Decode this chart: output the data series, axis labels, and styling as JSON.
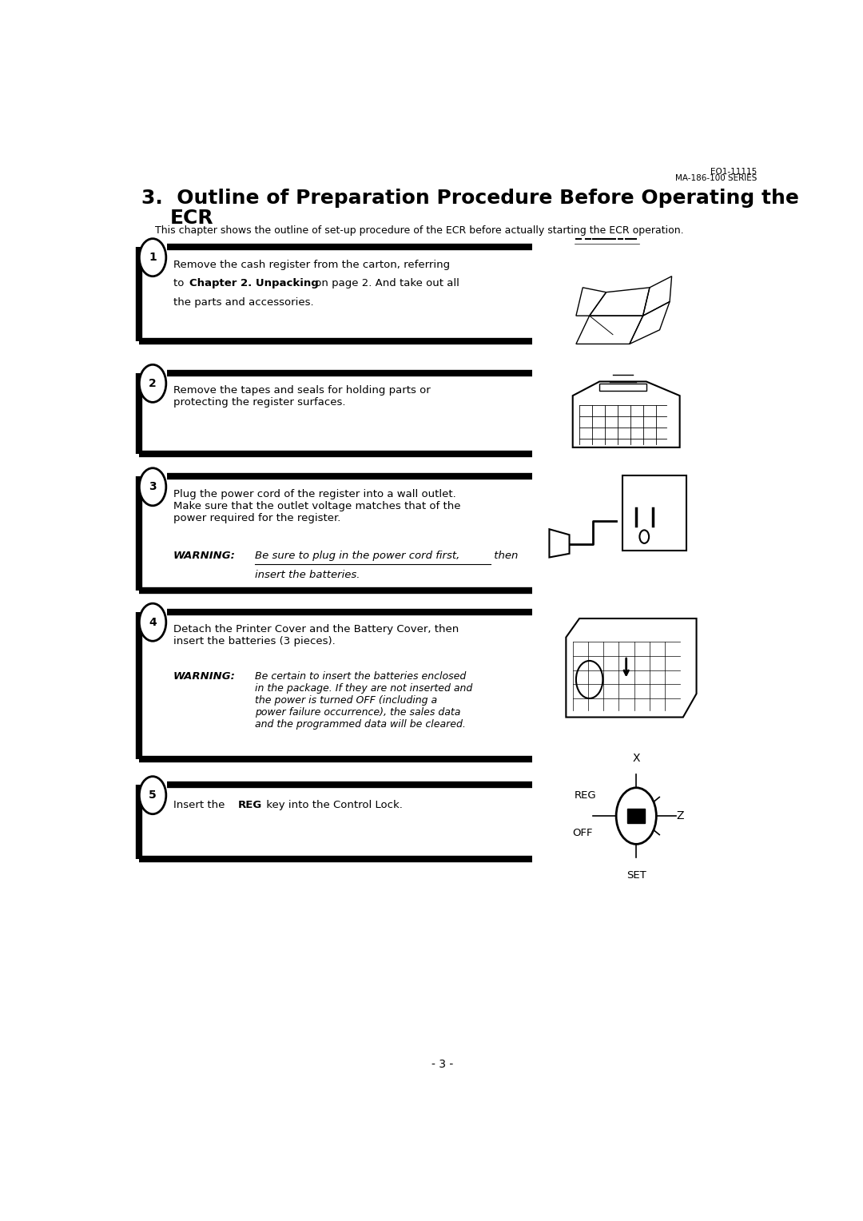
{
  "bg_color": "#ffffff",
  "header_line1": "EO1-11115",
  "header_line2": "MA-186-100 SERIES",
  "intro": "This chapter shows the outline of set-up procedure of the ECR before actually starting the ECR operation.",
  "page_num": "- 3 -"
}
